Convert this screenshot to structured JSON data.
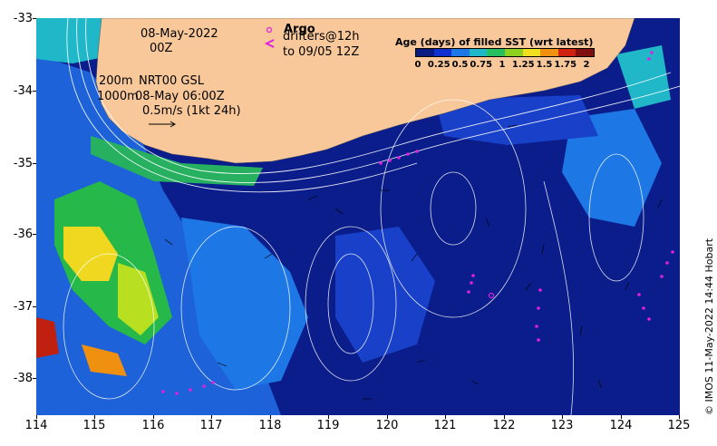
{
  "map": {
    "date_line1": "08-May-2022",
    "date_line2": "00Z",
    "argo_label": "Argo",
    "drifters_line1": "drifters@12h",
    "drifters_line2": "to 09/05 12Z",
    "contour_depth_1": "200m",
    "contour_depth_2": "1000m",
    "model_label": "NRT00 GSL",
    "model_time": "08-May 06:00Z",
    "vector_scale": "0.5m/s (1kt 24h)",
    "credit": "© IMOS 11-May-2022 14:44 Hobart",
    "lon_ticks": [
      "114",
      "115",
      "116",
      "117",
      "118",
      "119",
      "120",
      "121",
      "122",
      "123",
      "124",
      "125"
    ],
    "lat_ticks": [
      "-33",
      "-34",
      "-35",
      "-36",
      "-37",
      "-38"
    ],
    "colors": {
      "land": "#f9c89a",
      "ocean_base": "#0b1d8a",
      "drifter": "#e020e0"
    }
  },
  "colorbar": {
    "title": "Age (days) of filled SST (wrt latest)",
    "ticks": [
      "0",
      "0.25",
      "0.5",
      "0.75",
      "1",
      "1.25",
      "1.5",
      "1.75",
      "2"
    ],
    "colors": [
      "#0a1a80",
      "#1030d0",
      "#1d78e6",
      "#20b8c8",
      "#26c060",
      "#8ed020",
      "#f0e020",
      "#f09010",
      "#d02010",
      "#801010"
    ]
  }
}
